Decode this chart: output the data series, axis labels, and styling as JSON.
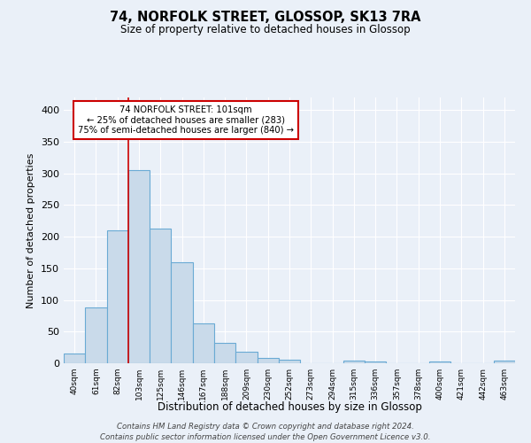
{
  "title": "74, NORFOLK STREET, GLOSSOP, SK13 7RA",
  "subtitle": "Size of property relative to detached houses in Glossop",
  "xlabel": "Distribution of detached houses by size in Glossop",
  "ylabel": "Number of detached properties",
  "bar_color": "#c9daea",
  "bar_edge_color": "#6aaad4",
  "background_color": "#eaf0f8",
  "grid_color": "white",
  "categories": [
    "40sqm",
    "61sqm",
    "82sqm",
    "103sqm",
    "125sqm",
    "146sqm",
    "167sqm",
    "188sqm",
    "209sqm",
    "230sqm",
    "252sqm",
    "273sqm",
    "294sqm",
    "315sqm",
    "336sqm",
    "357sqm",
    "378sqm",
    "400sqm",
    "421sqm",
    "442sqm",
    "463sqm"
  ],
  "values": [
    15,
    88,
    210,
    305,
    213,
    160,
    63,
    32,
    18,
    9,
    5,
    0,
    0,
    4,
    3,
    0,
    0,
    3,
    0,
    0,
    4
  ],
  "property_label": "74 NORFOLK STREET: 101sqm",
  "annotation_line1": "← 25% of detached houses are smaller (283)",
  "annotation_line2": "75% of semi-detached houses are larger (840) →",
  "vline_x": 2.5,
  "ylim": [
    0,
    420
  ],
  "yticks": [
    0,
    50,
    100,
    150,
    200,
    250,
    300,
    350,
    400
  ],
  "footer_line1": "Contains HM Land Registry data © Crown copyright and database right 2024.",
  "footer_line2": "Contains public sector information licensed under the Open Government Licence v3.0.",
  "annotation_box_color": "white",
  "annotation_box_edge": "#cc0000",
  "vline_color": "#cc0000"
}
